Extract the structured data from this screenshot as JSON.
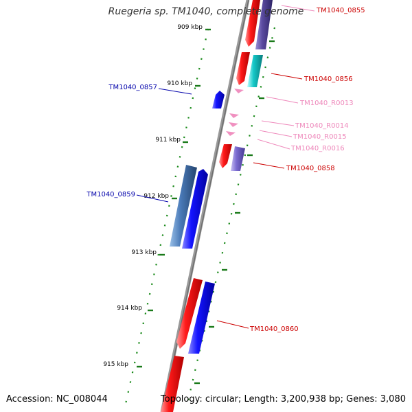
{
  "title": "Ruegeria sp. TM1040, complete genome",
  "footer": {
    "accession": "Accession: NC_008044",
    "summary": "Topology: circular; Length: 3,200,938 bp; Genes: 3,080"
  },
  "colors": {
    "backbone": "#888888",
    "tick": "#1a7a1a",
    "gene_red": "#ee0000",
    "gene_blue": "#1010ee",
    "gene_steel": "#4a78b0",
    "gene_purple": "#5a4aa0",
    "gene_cyan": "#14c8c8",
    "gene_lavender": "#7a6ad0",
    "rna_pink": "#f090c0",
    "label_red": "#cc0000",
    "label_blue": "#0000aa",
    "label_pink": "#ee88bb"
  },
  "scale": {
    "ticks": [
      "909 kbp",
      "910 kbp",
      "911 kbp",
      "912 kbp",
      "913 kbp",
      "914 kbp",
      "915 kbp"
    ]
  },
  "features": [
    {
      "name": "TM1040_0855",
      "kind": "gene",
      "color": "gene_red",
      "label_color": "label_red"
    },
    {
      "name": "TM1040_0856",
      "kind": "gene",
      "color": "gene_red",
      "label_color": "label_red"
    },
    {
      "name": "TM1040_0857",
      "kind": "gene",
      "color": "gene_blue",
      "label_color": "label_blue"
    },
    {
      "name": "TM1040_R0013",
      "kind": "rna",
      "color": "rna_pink",
      "label_color": "label_pink"
    },
    {
      "name": "TM1040_R0014",
      "kind": "rna",
      "color": "rna_pink",
      "label_color": "label_pink"
    },
    {
      "name": "TM1040_R0015",
      "kind": "rna",
      "color": "rna_pink",
      "label_color": "label_pink"
    },
    {
      "name": "TM1040_R0016",
      "kind": "rna",
      "color": "rna_pink",
      "label_color": "label_pink"
    },
    {
      "name": "TM1040_0858",
      "kind": "gene",
      "color": "gene_red",
      "label_color": "label_red"
    },
    {
      "name": "TM1040_0859",
      "kind": "gene",
      "color": "gene_blue",
      "label_color": "label_blue"
    },
    {
      "name": "TM1040_0860",
      "kind": "gene",
      "color": "gene_red",
      "label_color": "label_red"
    }
  ]
}
